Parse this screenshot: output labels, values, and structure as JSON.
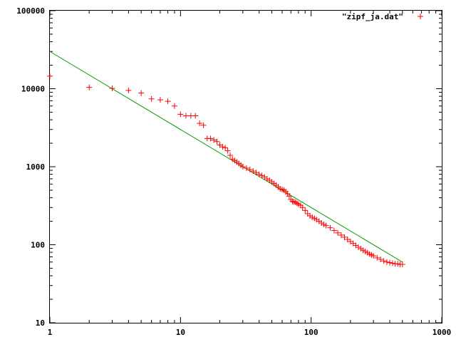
{
  "chart_data": {
    "type": "scatter",
    "title": "",
    "xlabel": "",
    "ylabel": "",
    "x_scale": "log",
    "y_scale": "log",
    "xlim": [
      1,
      1000
    ],
    "ylim": [
      10,
      100000
    ],
    "grid": false,
    "legend_position": "top-right",
    "x_ticks": [
      "1",
      "10",
      "100",
      "1000"
    ],
    "y_ticks": [
      "10",
      "100",
      "1000",
      "10000",
      "100000"
    ],
    "series": [
      {
        "name": "\"zipf_ja.dat\"",
        "marker": "plus",
        "color": "#ff0000",
        "x": [
          1,
          2,
          3,
          4,
          5,
          6,
          7,
          8,
          9,
          10,
          11,
          12,
          13,
          14,
          15,
          16,
          17,
          18,
          19,
          20,
          21,
          22,
          23,
          24,
          25,
          26,
          27,
          28,
          29,
          30,
          32,
          34,
          36,
          38,
          40,
          42,
          44,
          46,
          48,
          50,
          52,
          54,
          56,
          58,
          60,
          62,
          64,
          66,
          68,
          70,
          72,
          74,
          76,
          78,
          80,
          83,
          86,
          90,
          94,
          98,
          102,
          106,
          110,
          115,
          120,
          125,
          130,
          140,
          150,
          160,
          170,
          180,
          190,
          200,
          210,
          220,
          230,
          240,
          250,
          260,
          270,
          280,
          290,
          300,
          320,
          340,
          360,
          380,
          400,
          420,
          440,
          460,
          480,
          500
        ],
        "y": [
          14500,
          10400,
          10100,
          9500,
          8800,
          7400,
          7200,
          6900,
          6000,
          4700,
          4500,
          4500,
          4500,
          3600,
          3400,
          2300,
          2300,
          2200,
          2100,
          1900,
          1800,
          1750,
          1600,
          1400,
          1250,
          1200,
          1150,
          1100,
          1050,
          1000,
          960,
          920,
          880,
          840,
          800,
          770,
          740,
          700,
          670,
          640,
          610,
          580,
          550,
          520,
          510,
          500,
          480,
          450,
          420,
          380,
          360,
          355,
          350,
          340,
          330,
          320,
          300,
          275,
          250,
          235,
          225,
          218,
          210,
          200,
          190,
          182,
          176,
          165,
          152,
          142,
          133,
          125,
          117,
          110,
          104,
          98,
          93,
          89,
          85,
          82,
          79,
          76,
          74,
          72,
          68,
          65,
          62,
          60,
          59,
          58,
          57,
          57,
          56,
          56
        ]
      },
      {
        "name": "",
        "kind": "line",
        "color": "#00a000",
        "x": [
          1,
          500
        ],
        "y": [
          30000,
          60
        ]
      }
    ]
  }
}
